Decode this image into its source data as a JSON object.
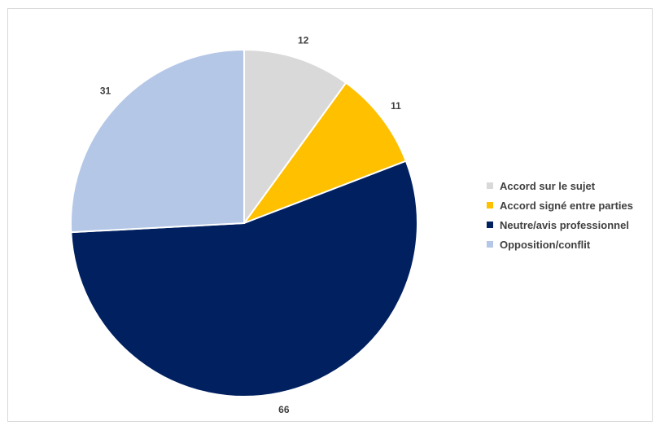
{
  "chart_data": {
    "type": "pie",
    "title": "",
    "legend_position": "right",
    "slices": [
      {
        "label": "Accord sur le sujet",
        "value": 12,
        "color": "#d9d9d9"
      },
      {
        "label": "Accord signé entre parties",
        "value": 11,
        "color": "#ffc000"
      },
      {
        "label": "Neutre/avis professionnel",
        "value": 66,
        "color": "#002060"
      },
      {
        "label": "Opposition/conflit",
        "value": 31,
        "color": "#b4c7e7"
      }
    ]
  }
}
